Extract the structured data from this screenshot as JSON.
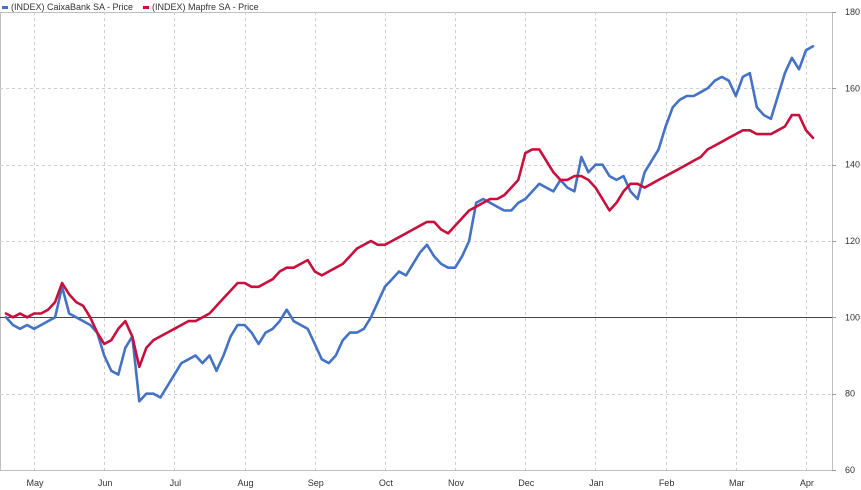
{
  "legend": {
    "items": [
      {
        "label": "(INDEX) CaixaBank  SA - Price",
        "color": "#4472C4"
      },
      {
        "label": "(INDEX) Mapfre  SA - Price",
        "color": "#C8103C"
      }
    ]
  },
  "chart_data": {
    "type": "line",
    "y_range": [
      60,
      180
    ],
    "y_ticks": [
      "60",
      "80",
      "100",
      "120",
      "140",
      "160",
      "180"
    ],
    "x_tick_labels": [
      "May",
      "Jun",
      "Jul",
      "Aug",
      "Sep",
      "Oct",
      "Nov",
      "Dec",
      "Jan",
      "Feb",
      "Mar",
      "Apr"
    ],
    "x_tick_index": [
      1,
      11,
      21,
      31,
      41,
      51,
      61,
      71,
      81,
      91,
      101,
      111
    ],
    "x_count": 116,
    "baseline": 100,
    "grid": true,
    "legend_position": "top-left",
    "series": [
      {
        "name": "(INDEX) CaixaBank  SA - Price",
        "color": "#4472C4",
        "values": [
          100,
          98,
          97,
          98,
          97,
          98,
          99,
          100,
          108,
          101,
          100,
          99,
          98,
          96,
          90,
          86,
          85,
          92,
          95,
          78,
          80,
          80,
          79,
          82,
          85,
          88,
          89,
          90,
          88,
          90,
          86,
          90,
          95,
          98,
          98,
          96,
          93,
          96,
          97,
          99,
          102,
          99,
          98,
          97,
          93,
          89,
          88,
          90,
          94,
          96,
          96,
          97,
          100,
          104,
          108,
          110,
          112,
          111,
          114,
          117,
          119,
          116,
          114,
          113,
          113,
          116,
          120,
          130,
          131,
          130,
          129,
          128,
          128,
          130,
          131,
          133,
          135,
          134,
          133,
          136,
          134,
          133,
          142,
          138,
          140,
          140,
          137,
          136,
          137,
          133,
          131,
          138,
          141,
          144,
          150,
          155,
          157,
          158,
          158,
          159,
          160,
          162,
          163,
          162,
          158,
          163,
          164,
          155,
          153,
          152,
          158,
          164,
          168,
          165,
          170,
          171
        ]
      },
      {
        "name": "(INDEX) Mapfre  SA - Price",
        "color": "#C8103C",
        "values": [
          101,
          100,
          101,
          100,
          101,
          101,
          102,
          104,
          109,
          106,
          104,
          103,
          100,
          96,
          93,
          94,
          97,
          99,
          95,
          87,
          92,
          94,
          95,
          96,
          97,
          98,
          99,
          99,
          100,
          101,
          103,
          105,
          107,
          109,
          109,
          108,
          108,
          109,
          110,
          112,
          113,
          113,
          114,
          115,
          112,
          111,
          112,
          113,
          114,
          116,
          118,
          119,
          120,
          119,
          119,
          120,
          121,
          122,
          123,
          124,
          125,
          125,
          123,
          122,
          124,
          126,
          128,
          129,
          130,
          131,
          131,
          132,
          134,
          136,
          143,
          144,
          144,
          141,
          138,
          136,
          136,
          137,
          137,
          136,
          134,
          131,
          128,
          130,
          133,
          135,
          135,
          134,
          135,
          136,
          137,
          138,
          139,
          140,
          141,
          142,
          144,
          145,
          146,
          147,
          148,
          149,
          149,
          148,
          148,
          148,
          149,
          150,
          153,
          153,
          149,
          147
        ]
      }
    ]
  }
}
